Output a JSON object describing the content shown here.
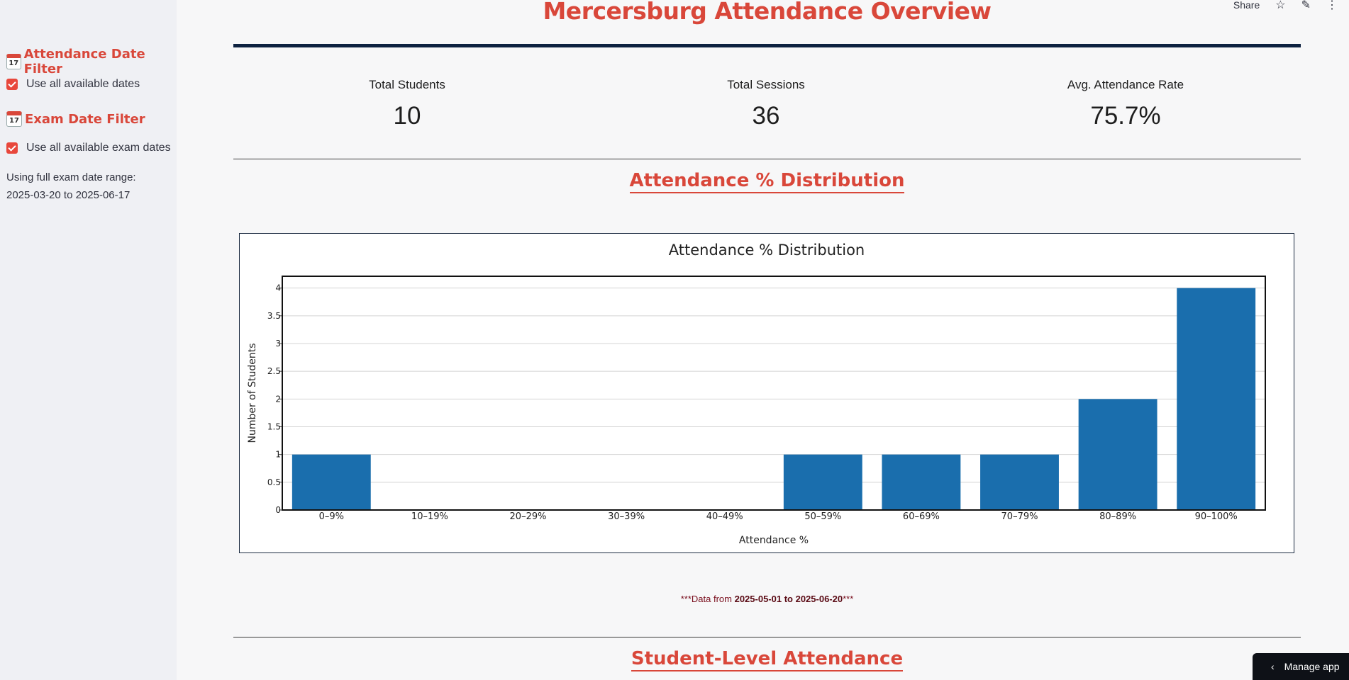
{
  "header": {
    "title": "Mercersburg Attendance Overview",
    "share_label": "Share"
  },
  "sidebar": {
    "attendance_filter": {
      "heading": "Attendance Date Filter",
      "checkbox_label": "Use all available dates",
      "checked": true
    },
    "exam_filter": {
      "heading": "Exam Date Filter",
      "checkbox_label": "Use all available exam dates",
      "checked": true
    },
    "range_note": "Using full exam date range: 2025-03-20 to 2025-06-17",
    "calendar_icon_text": "17"
  },
  "metrics": [
    {
      "label": "Total Students",
      "value": "10"
    },
    {
      "label": "Total Sessions",
      "value": "36"
    },
    {
      "label": "Avg. Attendance Rate",
      "value": "75.7%"
    }
  ],
  "sections": {
    "distribution_heading": "Attendance % Distribution",
    "student_level_heading": "Student-Level Attendance"
  },
  "data_note": {
    "prefix": "***Data from ",
    "range": "2025-05-01 to 2025-06-20",
    "suffix": "***"
  },
  "manage_app_label": "Manage app",
  "colors": {
    "accent": "#d9473a",
    "bar": "#1a6ead",
    "rule": "#0e2240"
  },
  "chart_data": {
    "type": "bar",
    "title": "Attendance % Distribution",
    "xlabel": "Attendance %",
    "ylabel": "Number of Students",
    "categories": [
      "0–9%",
      "10–19%",
      "20–29%",
      "30–39%",
      "40–49%",
      "50–59%",
      "60–69%",
      "70–79%",
      "80–89%",
      "90–100%"
    ],
    "values": [
      1,
      0,
      0,
      0,
      0,
      1,
      1,
      1,
      2,
      4
    ],
    "ylim": [
      0,
      4.2
    ],
    "yticks": [
      0,
      0.5,
      1,
      1.5,
      2,
      2.5,
      3,
      3.5,
      4
    ],
    "ytick_labels": [
      "0",
      "0.5",
      "1",
      "1.5",
      "2",
      "2.5",
      "3",
      "3.5",
      "4"
    ],
    "grid": true
  }
}
